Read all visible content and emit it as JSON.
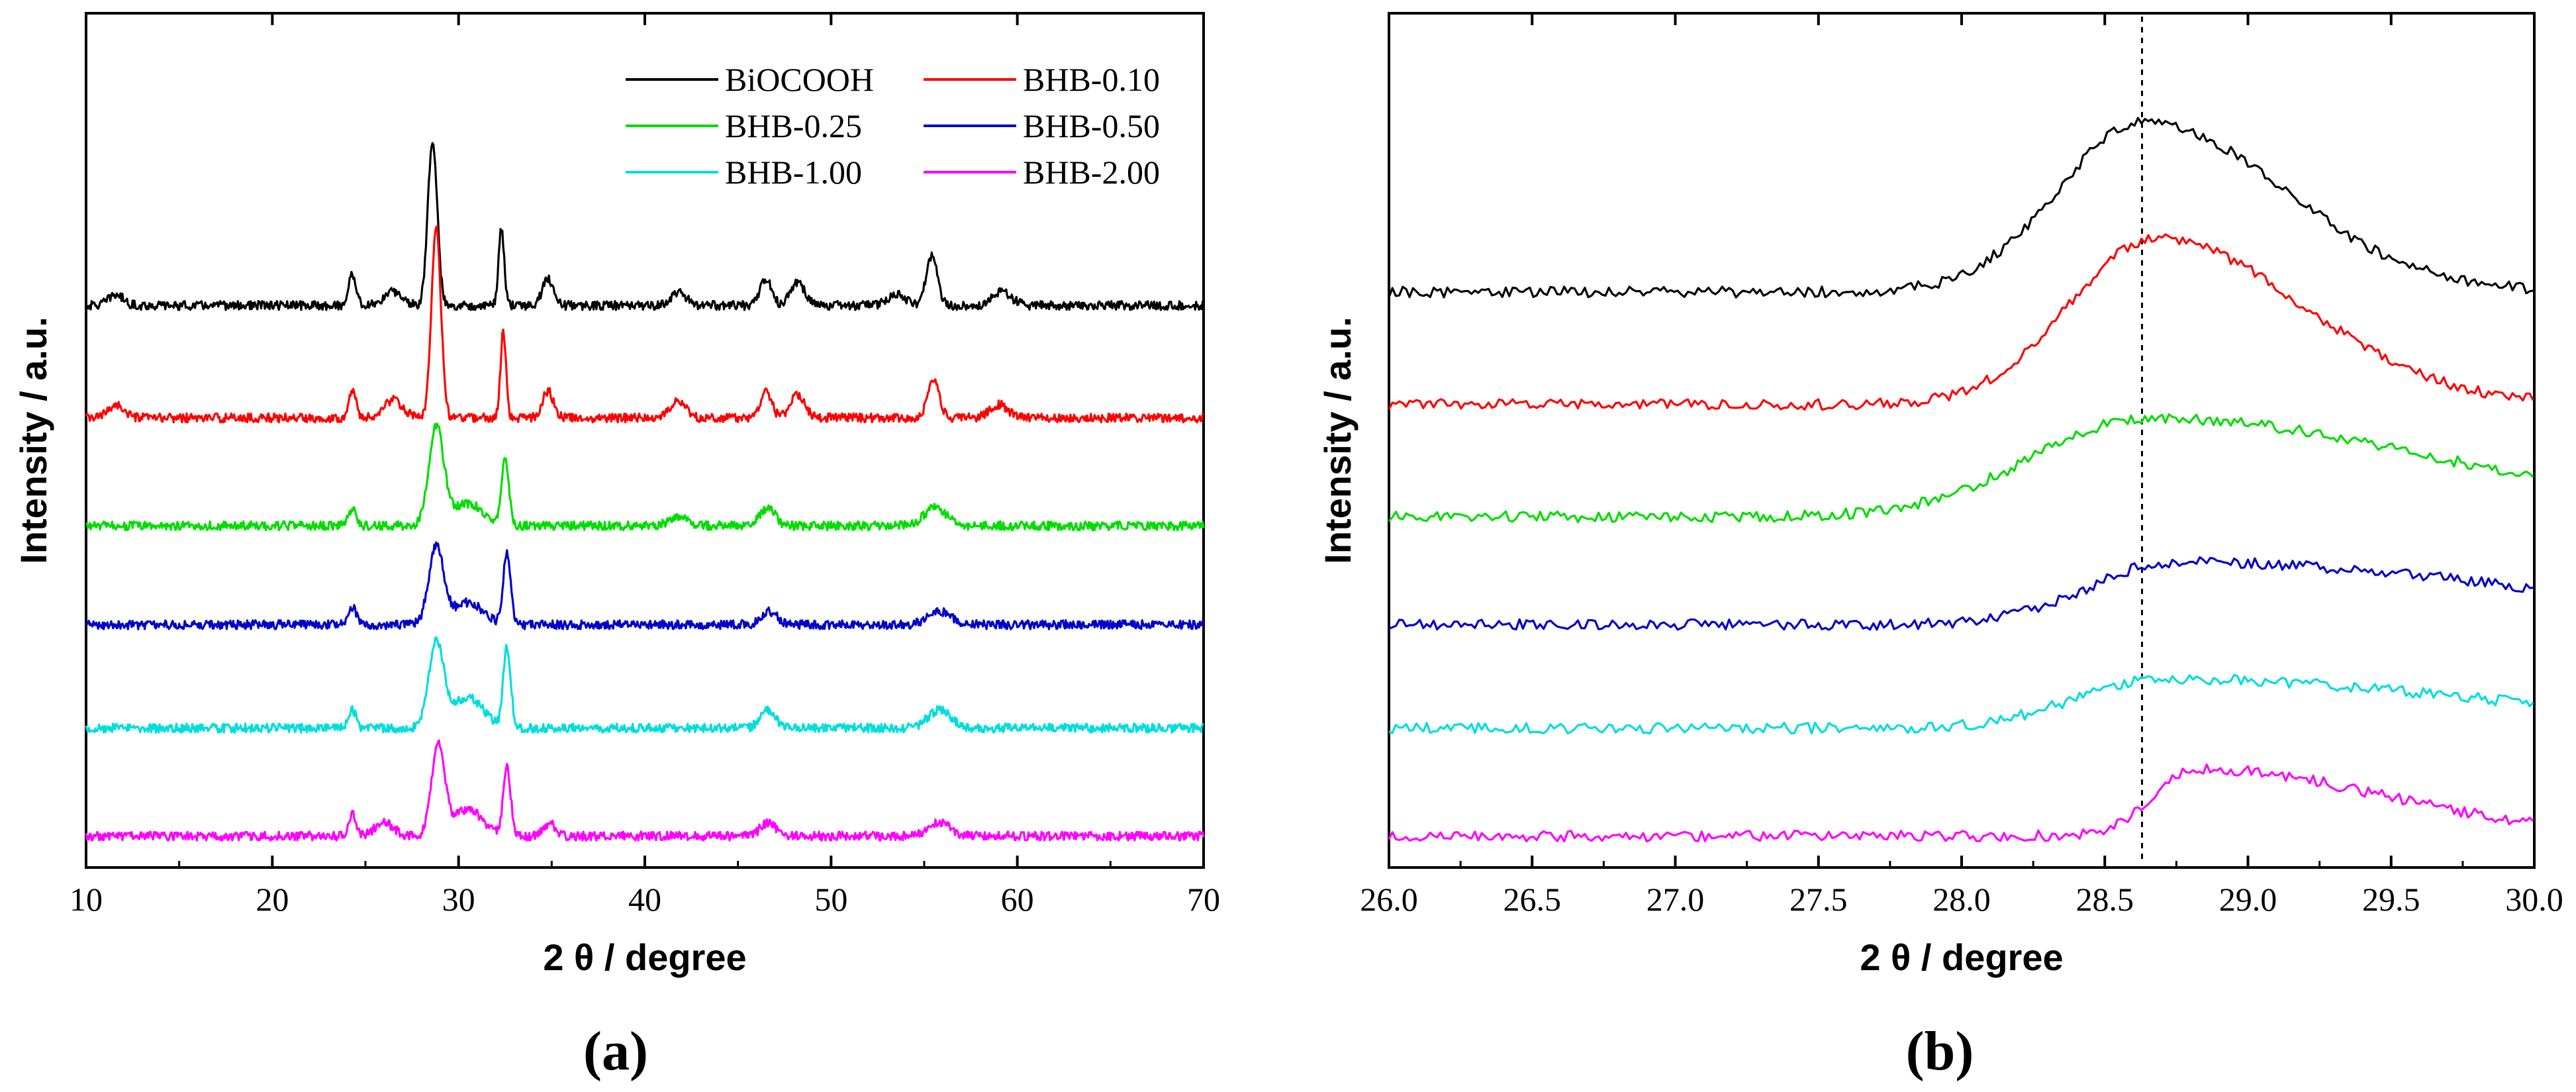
{
  "chart_data": [
    {
      "type": "line",
      "panel": "a",
      "caption": "(a)",
      "xlabel": "2 θ / degree",
      "ylabel": "Intensity / a.u.",
      "xlim": [
        10,
        70
      ],
      "xticks": [
        "10",
        "20",
        "30",
        "40",
        "50",
        "60",
        "70"
      ],
      "yticks_shown": false,
      "legend_position": "top-right",
      "series": [
        {
          "name": "BiOCOOH",
          "color": "#000000",
          "baseline": 6.25,
          "peaks": [
            [
              11.6,
              0.12,
              0.4
            ],
            [
              24.3,
              0.35,
              0.2
            ],
            [
              26.5,
              0.15,
              0.5
            ],
            [
              28.6,
              1.85,
              0.25
            ],
            [
              32.3,
              0.85,
              0.15
            ],
            [
              34.8,
              0.3,
              0.3
            ],
            [
              41.8,
              0.15,
              0.4
            ],
            [
              46.5,
              0.3,
              0.3
            ],
            [
              48.2,
              0.25,
              0.4
            ],
            [
              53.5,
              0.12,
              0.5
            ],
            [
              55.4,
              0.55,
              0.3
            ],
            [
              59.2,
              0.15,
              0.5
            ]
          ]
        },
        {
          "name": "BHB-0.10",
          "color": "#ff0000",
          "baseline": 5.0,
          "peaks": [
            [
              11.6,
              0.15,
              0.4
            ],
            [
              24.3,
              0.3,
              0.2
            ],
            [
              26.5,
              0.2,
              0.5
            ],
            [
              28.8,
              2.15,
              0.25
            ],
            [
              32.4,
              0.95,
              0.15
            ],
            [
              34.8,
              0.3,
              0.3
            ],
            [
              41.8,
              0.2,
              0.4
            ],
            [
              46.5,
              0.3,
              0.3
            ],
            [
              48.2,
              0.25,
              0.4
            ],
            [
              55.5,
              0.45,
              0.3
            ],
            [
              59.0,
              0.15,
              0.5
            ]
          ]
        },
        {
          "name": "BHB-0.25",
          "color": "#00dd00",
          "baseline": 3.8,
          "peaks": [
            [
              24.3,
              0.2,
              0.2
            ],
            [
              28.8,
              1.1,
              0.4
            ],
            [
              30.5,
              0.25,
              0.8
            ],
            [
              32.5,
              0.75,
              0.2
            ],
            [
              41.8,
              0.1,
              0.5
            ],
            [
              46.6,
              0.2,
              0.4
            ],
            [
              55.6,
              0.2,
              0.6
            ]
          ]
        },
        {
          "name": "BHB-0.50",
          "color": "#0000cc",
          "baseline": 2.7,
          "peaks": [
            [
              24.3,
              0.2,
              0.2
            ],
            [
              28.8,
              0.85,
              0.4
            ],
            [
              30.5,
              0.25,
              0.8
            ],
            [
              32.6,
              0.8,
              0.2
            ],
            [
              46.7,
              0.15,
              0.4
            ],
            [
              55.8,
              0.15,
              0.6
            ]
          ]
        },
        {
          "name": "BHB-1.00",
          "color": "#00dddd",
          "baseline": 1.55,
          "peaks": [
            [
              24.3,
              0.2,
              0.2
            ],
            [
              28.8,
              0.95,
              0.4
            ],
            [
              30.5,
              0.35,
              0.8
            ],
            [
              32.6,
              0.9,
              0.2
            ],
            [
              46.6,
              0.2,
              0.4
            ],
            [
              55.8,
              0.2,
              0.6
            ]
          ]
        },
        {
          "name": "BHB-2.00",
          "color": "#ff00ff",
          "baseline": 0.35,
          "peaks": [
            [
              24.3,
              0.25,
              0.2
            ],
            [
              26.0,
              0.15,
              0.5
            ],
            [
              28.9,
              1.0,
              0.35
            ],
            [
              30.5,
              0.3,
              0.8
            ],
            [
              32.6,
              0.75,
              0.2
            ],
            [
              34.9,
              0.15,
              0.3
            ],
            [
              46.6,
              0.15,
              0.4
            ],
            [
              55.8,
              0.15,
              0.6
            ]
          ]
        }
      ]
    },
    {
      "type": "line",
      "panel": "b",
      "caption": "(b)",
      "xlabel": "2 θ / degree",
      "ylabel": "Intensity / a.u.",
      "xlim": [
        26.0,
        30.0
      ],
      "xticks": [
        "26.0",
        "26.5",
        "27.0",
        "27.5",
        "28.0",
        "28.5",
        "29.0",
        "29.5",
        "30.0"
      ],
      "yticks_shown": false,
      "reference_line_x": 28.63,
      "series": [
        {
          "name": "BiOCOOH",
          "color": "#000000",
          "baseline": 6.4,
          "peaks": [
            [
              28.64,
              1.9,
              0.3,
              0.18
            ]
          ]
        },
        {
          "name": "BHB-0.10",
          "color": "#ff0000",
          "baseline": 5.15,
          "peaks": [
            [
              28.68,
              1.85,
              0.3,
              0.2
            ]
          ]
        },
        {
          "name": "BHB-0.25",
          "color": "#00dd00",
          "baseline": 3.9,
          "peaks": [
            [
              28.65,
              1.1,
              0.4,
              0.6
            ]
          ]
        },
        {
          "name": "BHB-0.50",
          "color": "#0000cc",
          "baseline": 2.7,
          "peaks": [
            [
              28.75,
              0.7,
              0.3,
              0.9
            ]
          ]
        },
        {
          "name": "BHB-1.00",
          "color": "#00dddd",
          "baseline": 1.55,
          "peaks": [
            [
              28.7,
              0.55,
              0.3,
              0.8
            ]
          ]
        },
        {
          "name": "BHB-2.00",
          "color": "#ff00ff",
          "baseline": 0.35,
          "peaks": [
            [
              28.82,
              0.75,
              0.15,
              0.5
            ]
          ]
        }
      ]
    }
  ]
}
